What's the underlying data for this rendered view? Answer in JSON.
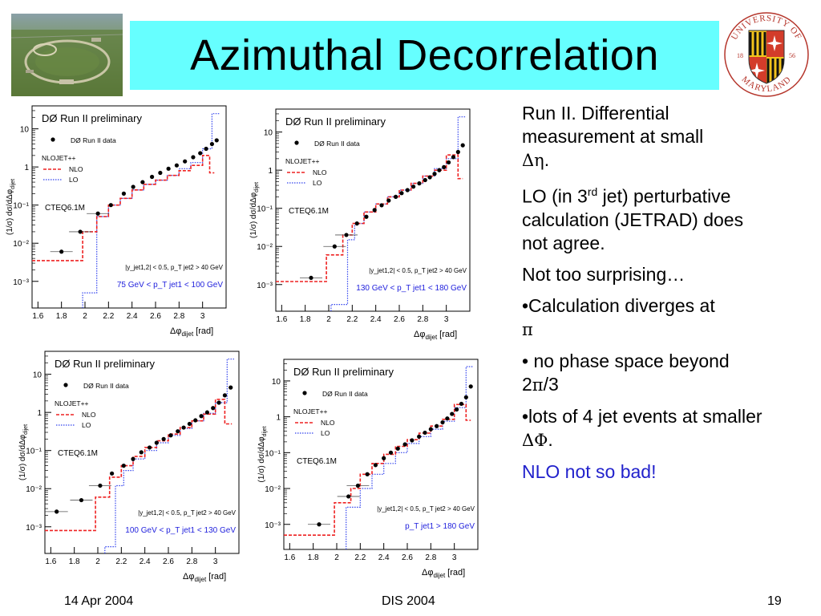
{
  "title": "Azimuthal Decorrelation",
  "logo": {
    "name": "University of Maryland seal",
    "text_top": "UNIVERSITY OF",
    "text_bottom": "MARYLAND",
    "year_left": "18",
    "year_right": "56"
  },
  "bullets": {
    "b1": "Run II. Differential measurement at small",
    "b1_sym": "Δη",
    "b1_end": ".",
    "b2_pre": "LO (in 3",
    "b2_sup": "rd",
    "b2_post": " jet) perturbative calculation (JETRAD) does not agree.",
    "b3": "Not too surprising…",
    "b4": "•Calculation diverges at",
    "b4_sym": "π",
    "b5_pre": "• no phase space beyond 2",
    "b5_sym": "π",
    "b5_post": "/3",
    "b6_pre": "•lots of 4 jet events at smaller ",
    "b6_sym": "ΔΦ",
    "b6_post": ".",
    "b7": "NLO not so bad!"
  },
  "footer": {
    "date": "14 Apr 2004",
    "conference": "DIS 2004",
    "page": "19"
  },
  "colors": {
    "title_bg": "#66ffff",
    "nlo": "#ee2222",
    "lo": "#3344ee",
    "data": "#000000",
    "range_label": "#2222dd"
  },
  "chart_common": {
    "heading": "DØ Run II preliminary",
    "legend_data": "DØ Run II data",
    "legend_generator": "NLOJET++",
    "legend_nlo": "NLO",
    "legend_lo": "LO",
    "pdf": "CTEQ6.1M",
    "ylabel": "(1/σ) dσ/dΔφ",
    "ylabel_sub": "dijet",
    "xlabel": "Δφ",
    "xlabel_sub": "dijet",
    "xlabel_unit": "[rad]",
    "ytick_labels": [
      "10⁻³",
      "10⁻²",
      "10⁻¹",
      "1",
      "10"
    ],
    "ytick_values": [
      0.001,
      0.01,
      0.1,
      1,
      10
    ]
  },
  "chart_data": [
    {
      "type": "scatter",
      "cut": "|y_jet1,2| < 0.5, p_T jet2 > 40 GeV",
      "range": "75 GeV < p_T jet1 < 100 GeV",
      "xlim": [
        1.55,
        3.2
      ],
      "ylim": [
        0.0002,
        40
      ],
      "xtick_labels": [
        "1.6",
        "1.8",
        "2",
        "2.2",
        "2.4",
        "2.6",
        "2.8",
        "3"
      ],
      "data": {
        "x": [
          1.8,
          1.96,
          2.11,
          2.22,
          2.33,
          2.41,
          2.49,
          2.57,
          2.64,
          2.71,
          2.78,
          2.85,
          2.92,
          2.98,
          3.03,
          3.08,
          3.12
        ],
        "y": [
          0.006,
          0.02,
          0.06,
          0.1,
          0.2,
          0.3,
          0.4,
          0.55,
          0.7,
          0.9,
          1.1,
          1.4,
          1.8,
          2.3,
          3.0,
          4.0,
          5.0
        ]
      },
      "nlo": {
        "x": [
          1.55,
          1.98,
          1.98,
          2.1,
          2.1,
          2.2,
          2.2,
          2.3,
          2.3,
          2.4,
          2.4,
          2.5,
          2.5,
          2.6,
          2.6,
          2.7,
          2.7,
          2.8,
          2.8,
          2.9,
          2.9,
          3.0,
          3.0,
          3.06,
          3.06,
          3.1
        ],
        "y": [
          0.0035,
          0.0035,
          0.02,
          0.02,
          0.05,
          0.05,
          0.1,
          0.1,
          0.15,
          0.15,
          0.25,
          0.25,
          0.35,
          0.35,
          0.45,
          0.45,
          0.6,
          0.6,
          0.8,
          0.8,
          1.1,
          1.1,
          2.0,
          2.0,
          0.7,
          0.7
        ]
      },
      "lo": {
        "x": [
          1.98,
          1.98,
          2.1,
          2.1,
          2.2,
          2.2,
          2.3,
          2.3,
          2.4,
          2.4,
          2.5,
          2.5,
          2.6,
          2.6,
          2.7,
          2.7,
          2.8,
          2.8,
          2.9,
          2.9,
          3.0,
          3.0,
          3.08,
          3.08,
          3.15
        ],
        "y": [
          0.0002,
          0.0005,
          0.0005,
          0.05,
          0.05,
          0.1,
          0.1,
          0.15,
          0.15,
          0.25,
          0.25,
          0.35,
          0.35,
          0.45,
          0.45,
          0.6,
          0.6,
          0.9,
          0.9,
          1.3,
          1.3,
          3.0,
          3.0,
          25,
          25
        ]
      }
    },
    {
      "type": "scatter",
      "cut": "|y_jet1,2| < 0.5, p_T jet2 > 40 GeV",
      "range": "130 GeV < p_T jet1 < 180 GeV",
      "xlim": [
        1.55,
        3.2
      ],
      "ylim": [
        0.0002,
        40
      ],
      "xtick_labels": [
        "1.6",
        "1.8",
        "2",
        "2.2",
        "2.4",
        "2.6",
        "2.8",
        "3"
      ],
      "data": {
        "x": [
          1.85,
          2.05,
          2.15,
          2.24,
          2.32,
          2.39,
          2.45,
          2.51,
          2.57,
          2.62,
          2.67,
          2.72,
          2.77,
          2.82,
          2.86,
          2.9,
          2.94,
          2.98,
          3.02,
          3.06,
          3.1,
          3.14
        ],
        "y": [
          0.0015,
          0.01,
          0.02,
          0.04,
          0.06,
          0.09,
          0.12,
          0.16,
          0.2,
          0.25,
          0.3,
          0.37,
          0.45,
          0.55,
          0.65,
          0.8,
          1.0,
          1.2,
          1.6,
          2.2,
          3.0,
          4.5
        ]
      },
      "nlo": {
        "x": [
          1.55,
          1.98,
          1.98,
          2.12,
          2.12,
          2.2,
          2.2,
          2.3,
          2.3,
          2.4,
          2.4,
          2.5,
          2.5,
          2.6,
          2.6,
          2.7,
          2.7,
          2.8,
          2.8,
          2.9,
          2.9,
          3.0,
          3.0,
          3.1,
          3.1,
          3.14
        ],
        "y": [
          0.0012,
          0.0012,
          0.006,
          0.006,
          0.02,
          0.02,
          0.04,
          0.04,
          0.08,
          0.08,
          0.13,
          0.13,
          0.2,
          0.2,
          0.3,
          0.3,
          0.45,
          0.45,
          0.7,
          0.7,
          1.0,
          1.0,
          2.5,
          2.5,
          0.6,
          0.6
        ]
      },
      "lo": {
        "x": [
          2.02,
          2.02,
          2.16,
          2.16,
          2.22,
          2.22,
          2.3,
          2.3,
          2.4,
          2.4,
          2.5,
          2.5,
          2.6,
          2.6,
          2.7,
          2.7,
          2.8,
          2.8,
          2.9,
          2.9,
          3.0,
          3.0,
          3.1,
          3.1,
          3.16
        ],
        "y": [
          0.0002,
          0.0003,
          0.0003,
          0.015,
          0.015,
          0.04,
          0.04,
          0.08,
          0.08,
          0.13,
          0.13,
          0.2,
          0.2,
          0.3,
          0.3,
          0.45,
          0.45,
          0.7,
          0.7,
          1.1,
          1.1,
          2.0,
          2.0,
          25,
          25
        ]
      }
    },
    {
      "type": "scatter",
      "cut": "|y_jet1,2| < 0.5, p_T jet2 > 40 GeV",
      "range": "100 GeV < p_T jet1 < 130 GeV",
      "xlim": [
        1.55,
        3.2
      ],
      "ylim": [
        0.0002,
        40
      ],
      "xtick_labels": [
        "1.6",
        "1.8",
        "2",
        "2.2",
        "2.4",
        "2.6",
        "2.8",
        "3"
      ],
      "data": {
        "x": [
          1.65,
          1.86,
          2.02,
          2.12,
          2.22,
          2.3,
          2.37,
          2.44,
          2.5,
          2.56,
          2.62,
          2.68,
          2.73,
          2.78,
          2.83,
          2.88,
          2.93,
          2.98,
          3.03,
          3.08,
          3.13
        ],
        "y": [
          0.0025,
          0.005,
          0.012,
          0.025,
          0.04,
          0.06,
          0.09,
          0.12,
          0.16,
          0.2,
          0.25,
          0.32,
          0.4,
          0.5,
          0.62,
          0.8,
          1.0,
          1.3,
          1.8,
          2.8,
          4.5
        ]
      },
      "nlo": {
        "x": [
          1.55,
          1.98,
          1.98,
          2.1,
          2.1,
          2.2,
          2.2,
          2.3,
          2.3,
          2.4,
          2.4,
          2.5,
          2.5,
          2.6,
          2.6,
          2.7,
          2.7,
          2.8,
          2.8,
          2.9,
          2.9,
          3.0,
          3.0,
          3.08,
          3.08,
          3.14
        ],
        "y": [
          0.0008,
          0.0008,
          0.006,
          0.006,
          0.02,
          0.02,
          0.04,
          0.04,
          0.07,
          0.07,
          0.12,
          0.12,
          0.18,
          0.18,
          0.27,
          0.27,
          0.4,
          0.4,
          0.6,
          0.6,
          0.9,
          0.9,
          2.2,
          2.2,
          0.5,
          0.5
        ]
      },
      "lo": {
        "x": [
          2.06,
          2.06,
          2.15,
          2.15,
          2.22,
          2.22,
          2.3,
          2.3,
          2.4,
          2.4,
          2.5,
          2.5,
          2.6,
          2.6,
          2.7,
          2.7,
          2.8,
          2.8,
          2.9,
          2.9,
          3.0,
          3.0,
          3.1,
          3.1,
          3.16
        ],
        "y": [
          0.0002,
          0.0003,
          0.0003,
          0.012,
          0.012,
          0.03,
          0.03,
          0.06,
          0.06,
          0.1,
          0.1,
          0.16,
          0.16,
          0.25,
          0.25,
          0.38,
          0.38,
          0.6,
          0.6,
          0.95,
          0.95,
          1.8,
          1.8,
          25,
          25
        ]
      }
    },
    {
      "type": "scatter",
      "cut": "|y_jet1,2| < 0.5, p_T jet2 > 40 GeV",
      "range": "p_T jet1 > 180 GeV",
      "xlim": [
        1.55,
        3.2
      ],
      "ylim": [
        0.0002,
        40
      ],
      "xtick_labels": [
        "1.6",
        "1.8",
        "2",
        "2.2",
        "2.4",
        "2.6",
        "2.8",
        "3"
      ],
      "data": {
        "x": [
          1.85,
          2.1,
          2.18,
          2.26,
          2.33,
          2.4,
          2.46,
          2.52,
          2.58,
          2.64,
          2.7,
          2.75,
          2.8,
          2.85,
          2.9,
          2.94,
          2.98,
          3.02,
          3.06,
          3.1,
          3.14
        ],
        "y": [
          0.001,
          0.006,
          0.012,
          0.025,
          0.045,
          0.07,
          0.1,
          0.13,
          0.17,
          0.22,
          0.28,
          0.36,
          0.45,
          0.55,
          0.7,
          0.9,
          1.2,
          1.6,
          2.3,
          3.5,
          7.0
        ]
      },
      "nlo": {
        "x": [
          1.55,
          1.98,
          1.98,
          2.12,
          2.12,
          2.2,
          2.2,
          2.3,
          2.3,
          2.4,
          2.4,
          2.5,
          2.5,
          2.6,
          2.6,
          2.7,
          2.7,
          2.8,
          2.8,
          2.9,
          2.9,
          3.0,
          3.0,
          3.1,
          3.1,
          3.14
        ],
        "y": [
          0.0005,
          0.0005,
          0.004,
          0.004,
          0.01,
          0.01,
          0.025,
          0.025,
          0.05,
          0.05,
          0.09,
          0.09,
          0.15,
          0.15,
          0.23,
          0.23,
          0.35,
          0.35,
          0.55,
          0.55,
          0.85,
          0.85,
          2.2,
          2.2,
          0.8,
          0.8
        ]
      },
      "lo": {
        "x": [
          2.08,
          2.08,
          2.2,
          2.2,
          2.3,
          2.3,
          2.4,
          2.4,
          2.5,
          2.5,
          2.6,
          2.6,
          2.7,
          2.7,
          2.8,
          2.8,
          2.9,
          2.9,
          3.0,
          3.0,
          3.1,
          3.1,
          3.16
        ],
        "y": [
          0.0002,
          0.003,
          0.003,
          0.01,
          0.01,
          0.025,
          0.025,
          0.05,
          0.05,
          0.1,
          0.1,
          0.18,
          0.18,
          0.28,
          0.28,
          0.45,
          0.45,
          0.75,
          0.75,
          1.8,
          1.8,
          25,
          25
        ]
      }
    }
  ]
}
